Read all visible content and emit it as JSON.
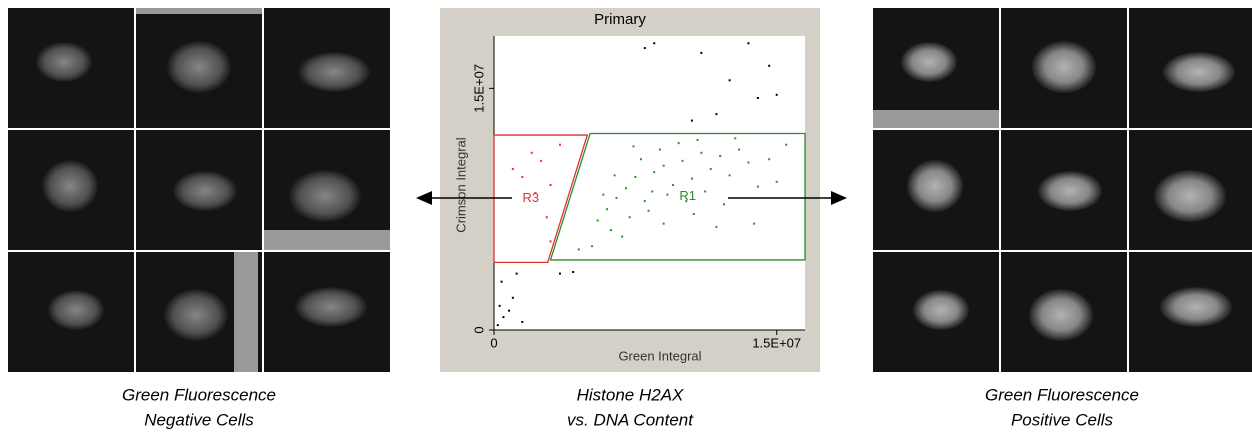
{
  "left_panel": {
    "caption": [
      "Green Fluorescence",
      "Negative Cells"
    ]
  },
  "chart_data": {
    "type": "scatter",
    "title": "Primary",
    "xlabel": "Green Integral",
    "ylabel": "Crimson Integral",
    "caption": [
      "Histone H2AX",
      "vs. DNA Content"
    ],
    "xlim": [
      0,
      16500000
    ],
    "ylim": [
      0,
      18250000
    ],
    "xticks": [
      0,
      {
        "value": 15000000,
        "label": "1.5E+07"
      }
    ],
    "yticks": [
      0,
      {
        "value": 15000000,
        "label": "1.5E+07"
      }
    ],
    "regions": [
      {
        "name": "R1",
        "color": "#2e8b2e",
        "points": [
          [
            5100000,
            12200000
          ],
          [
            16500000,
            12200000
          ],
          [
            16500000,
            4350000
          ],
          [
            3000000,
            4350000
          ]
        ]
      },
      {
        "name": "R3",
        "color": "#e03030",
        "points": [
          [
            0,
            12100000
          ],
          [
            4950000,
            12100000
          ],
          [
            2850000,
            4200000
          ],
          [
            0,
            4200000
          ]
        ]
      }
    ],
    "series": [
      {
        "color": "#1f9a1f",
        "x": [
          6000000.0,
          6500000.0,
          7000000.0,
          7500000.0,
          8000000.0,
          8500000.0,
          9000000.0,
          9500000.0,
          10000000.0,
          10500000.0,
          11000000.0,
          11500000.0,
          12000000.0,
          12500000.0,
          13000000.0,
          13500000.0,
          14000000.0,
          5500000.0,
          6200000.0,
          7200000.0,
          8200000.0,
          9200000.0,
          10200000.0,
          11200000.0,
          12200000.0,
          7800000.0,
          8800000.0,
          9800000.0,
          10800000.0,
          5200000.0,
          4500000.0,
          6800000.0,
          13800000.0,
          15000000.0,
          15500000.0,
          9000000.0,
          11800000.0,
          7400000.0,
          8400000.0,
          10600000.0,
          6400000.0,
          12800000.0,
          14600000.0,
          5800000.0
        ],
        "values": [
          7500000.0,
          8200000.0,
          8800000.0,
          9500000.0,
          8000000.0,
          9800000.0,
          10200000.0,
          9000000.0,
          10500000.0,
          9400000.0,
          11000000.0,
          10000000.0,
          10800000.0,
          9600000.0,
          11200000.0,
          10400000.0,
          8900000.0,
          6800000.0,
          6200000.0,
          7000000.0,
          7400000.0,
          8400000.0,
          8000000.0,
          8600000.0,
          7800000.0,
          10600000.0,
          11200000.0,
          11600000.0,
          11800000.0,
          5200000.0,
          5000000.0,
          5800000.0,
          6600000.0,
          9200000.0,
          11500000.0,
          6600000.0,
          6400000.0,
          11400000.0,
          8600000.0,
          7200000.0,
          9600000.0,
          11900000.0,
          10600000.0,
          8400000.0
        ]
      },
      {
        "color": "#e03030",
        "x": [
          1000000.0,
          1500000.0,
          2000000.0,
          2500000.0,
          3000000.0,
          3500000.0,
          2800000.0,
          3000000.0,
          2200000.0
        ],
        "values": [
          10000000.0,
          9500000.0,
          11000000.0,
          10500000.0,
          9000000.0,
          11500000.0,
          7000000.0,
          5500000.0,
          8500000.0
        ]
      },
      {
        "color": "#000000",
        "x": [
          200000.0,
          500000.0,
          800000.0,
          1000000.0,
          300000.0,
          1500000.0,
          3500000.0,
          4200000.0,
          8000000.0,
          8500000.0,
          11000000.0,
          12500000.0,
          13500000.0,
          14000000.0,
          14600000.0,
          10500000.0,
          11800000.0,
          15000000.0,
          400000.0,
          1200000.0
        ],
        "values": [
          300000.0,
          800000.0,
          1200000.0,
          2000000.0,
          1500000.0,
          500000.0,
          3500000.0,
          3600000.0,
          17500000.0,
          17800000.0,
          17200000.0,
          15500000.0,
          17800000.0,
          14400000.0,
          16400000.0,
          13000000.0,
          13400000.0,
          14600000.0,
          3000000.0,
          3500000.0
        ]
      }
    ]
  },
  "right_panel": {
    "caption": [
      "Green Fluorescence",
      "Positive Cells"
    ]
  }
}
